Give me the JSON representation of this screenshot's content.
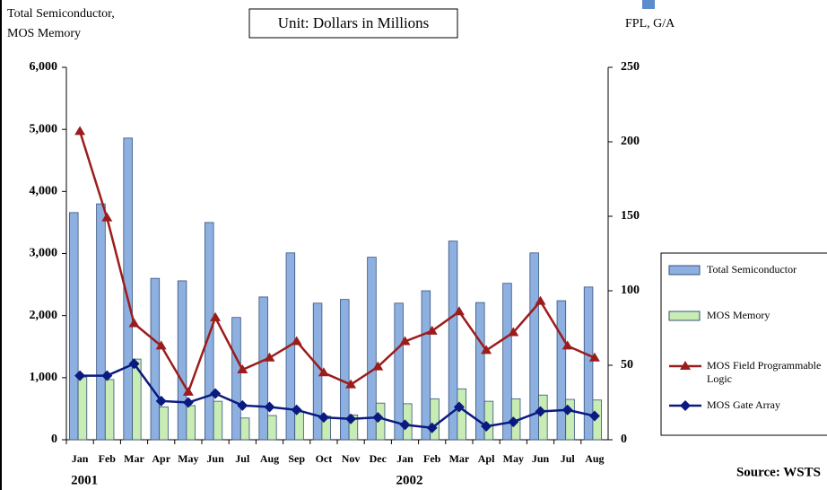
{
  "chart_data": {
    "type": "bar_line",
    "y_label": [
      "Total Semiconductor,",
      "MOS Memory"
    ],
    "y2_label": "FPL, G/A",
    "annotation": "Unit: Dollars in Millions",
    "source": "Source: WSTS",
    "categories": [
      "Jan",
      "Feb",
      "Mar",
      "Apr",
      "May",
      "Jun",
      "Jul",
      "Aug",
      "Sep",
      "Oct",
      "Nov",
      "Dec",
      "Jan",
      "Feb",
      "Mar",
      "Apl",
      "May",
      "Jun",
      "Jul",
      "Aug"
    ],
    "year_labels": [
      "2001",
      "2002"
    ],
    "ylim": [
      0,
      6000
    ],
    "yticks": [
      0,
      {
        "value": 1000,
        "label": "1,000"
      },
      {
        "value": 2000,
        "label": "2,000"
      },
      {
        "value": 3000,
        "label": "3,000"
      },
      {
        "value": 4000,
        "label": "4,000"
      },
      {
        "value": 5000,
        "label": "5,000"
      },
      {
        "value": 6000,
        "label": "6,000"
      }
    ],
    "y2lim": [
      0,
      250
    ],
    "y2ticks": [
      0,
      50,
      100,
      150,
      200,
      250
    ],
    "legend": "right",
    "series": [
      {
        "name": "Total Semiconductor",
        "kind": "bar",
        "color": "#8db0e0",
        "values": [
          3660,
          3800,
          4860,
          2600,
          2560,
          3500,
          1970,
          2300,
          3010,
          2200,
          2260,
          2940,
          2200,
          2400,
          3200,
          2210,
          2520,
          3010,
          2240,
          2460
        ]
      },
      {
        "name": "MOS Memory",
        "kind": "bar",
        "color": "#c8ecb4",
        "values": [
          1010,
          970,
          1300,
          530,
          550,
          620,
          350,
          390,
          450,
          380,
          400,
          590,
          580,
          660,
          820,
          620,
          660,
          720,
          650,
          640
        ]
      },
      {
        "name": "MOS Field Programmable Logic",
        "kind": "line",
        "axis": "y2",
        "color": "#9c1c1c",
        "marker": "triangle",
        "values": [
          207,
          149,
          78,
          63,
          32,
          82,
          47,
          55,
          66,
          45,
          37,
          49,
          66,
          73,
          86,
          60,
          72,
          93,
          63,
          55
        ]
      },
      {
        "name": "MOS Gate Array",
        "kind": "line",
        "axis": "y2",
        "color": "#0a1a80",
        "marker": "diamond",
        "values": [
          43,
          43,
          51,
          26,
          25,
          31,
          23,
          22,
          20,
          15,
          14,
          15,
          10,
          8,
          22,
          9,
          12,
          19,
          20,
          16
        ]
      }
    ]
  }
}
